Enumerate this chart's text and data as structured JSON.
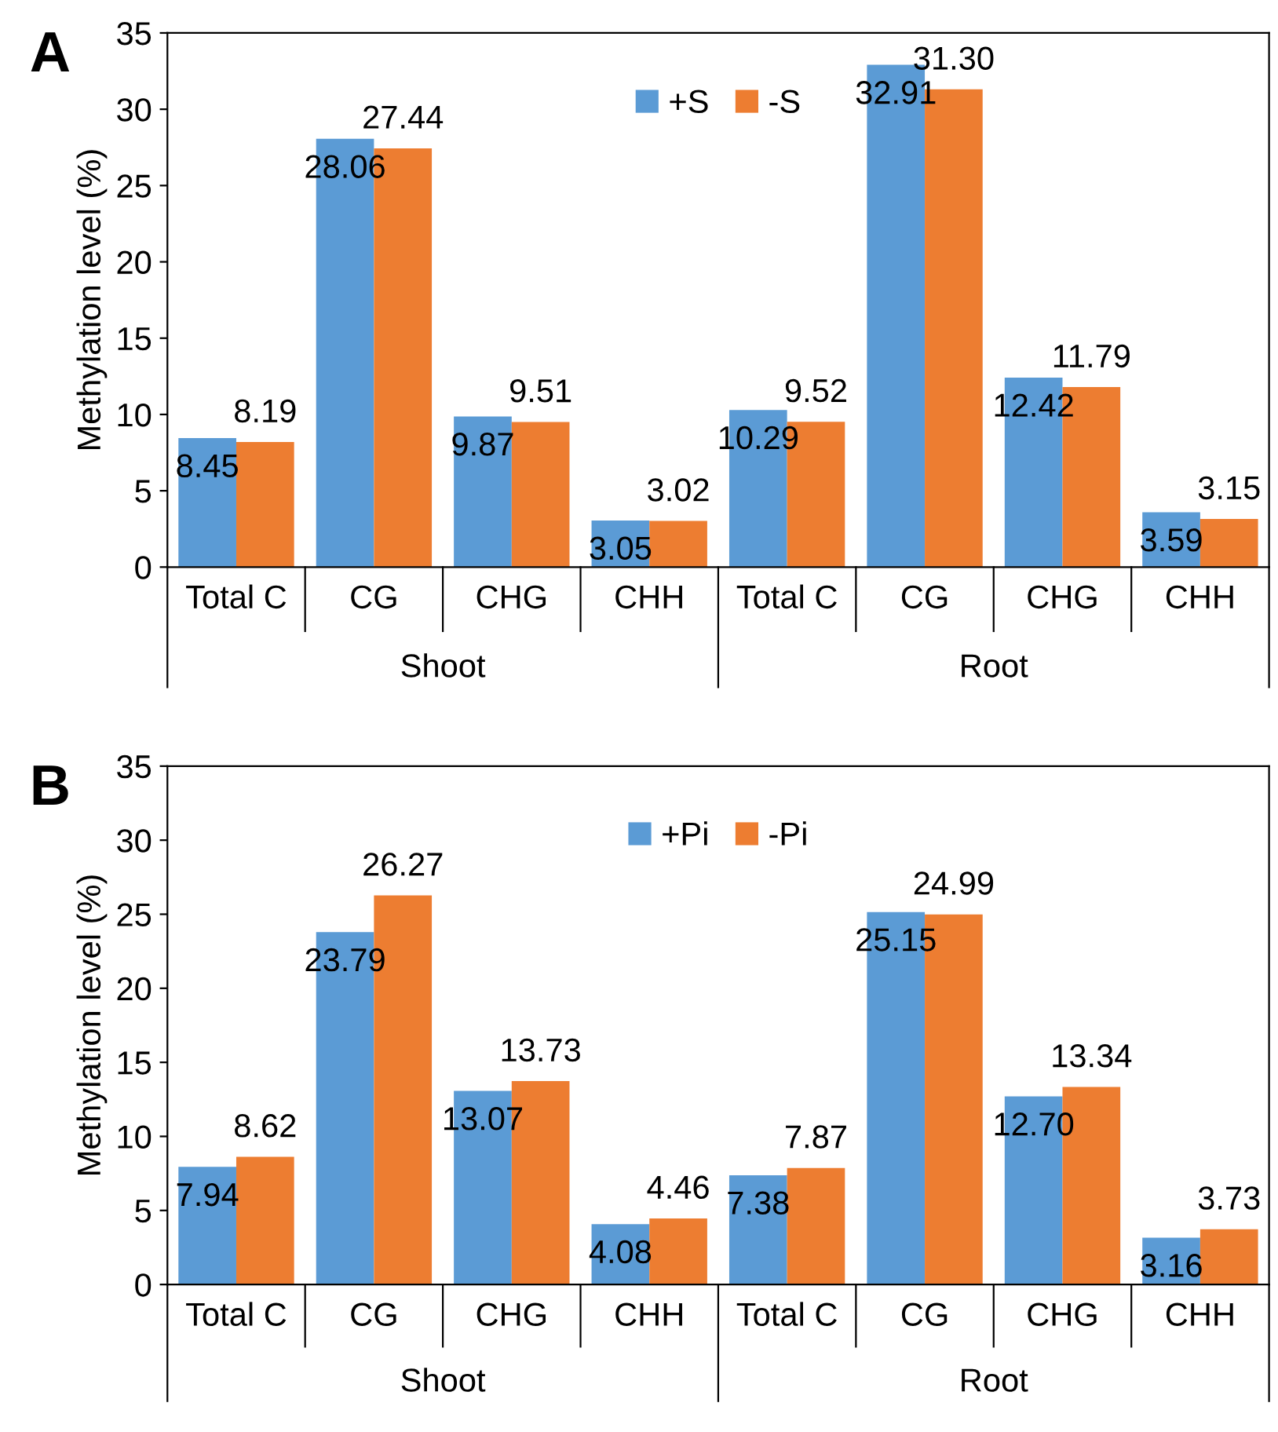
{
  "chart_data": [
    {
      "type": "bar",
      "title": "A",
      "ylabel": "Methylation level (%)",
      "categories": [
        "Total C",
        "CG",
        "CHG",
        "CHH",
        "Total C",
        "CG",
        "CHG",
        "CHH"
      ],
      "series": [
        {
          "name": "+S",
          "color": "#5b9bd5",
          "values": [
            8.45,
            28.06,
            9.87,
            3.05,
            10.29,
            32.91,
            12.42,
            3.59
          ],
          "value_labels": [
            "8.45",
            "28.06",
            "9.87",
            "3.05",
            "10.29",
            "32.91",
            "12.42",
            "3.59"
          ]
        },
        {
          "name": "-S",
          "color": "#ed7d31",
          "values": [
            8.19,
            27.44,
            9.51,
            3.02,
            9.52,
            31.3,
            11.79,
            3.15
          ],
          "value_labels": [
            "8.19",
            "27.44",
            "9.51",
            "3.02",
            "9.52",
            "31.30",
            "11.79",
            "3.15"
          ]
        }
      ],
      "ylim": [
        0,
        35
      ],
      "yticks": [
        0,
        5,
        10,
        15,
        20,
        25,
        30,
        35
      ],
      "data_labels": true,
      "legend": "top",
      "grid": false,
      "annotations": [
        "Shoot",
        "Root"
      ]
    },
    {
      "type": "bar",
      "title": "B",
      "ylabel": "Methylation level (%)",
      "categories": [
        "Total C",
        "CG",
        "CHG",
        "CHH",
        "Total C",
        "CG",
        "CHG",
        "CHH"
      ],
      "series": [
        {
          "name": "+Pi",
          "color": "#5b9bd5",
          "values": [
            7.94,
            23.79,
            13.07,
            4.08,
            7.38,
            25.15,
            12.7,
            3.16
          ],
          "value_labels": [
            "7.94",
            "23.79",
            "13.07",
            "4.08",
            "7.38",
            "25.15",
            "12.70",
            "3.16"
          ]
        },
        {
          "name": "-Pi",
          "color": "#ed7d31",
          "values": [
            8.62,
            26.27,
            13.73,
            4.46,
            7.87,
            24.99,
            13.34,
            3.73
          ],
          "value_labels": [
            "8.62",
            "26.27",
            "13.73",
            "4.46",
            "7.87",
            "24.99",
            "13.34",
            "3.73"
          ]
        }
      ],
      "ylim": [
        0,
        35
      ],
      "yticks": [
        0,
        5,
        10,
        15,
        20,
        25,
        30,
        35
      ],
      "data_labels": true,
      "legend": "top",
      "grid": false,
      "annotations": [
        "Shoot",
        "Root"
      ]
    }
  ]
}
